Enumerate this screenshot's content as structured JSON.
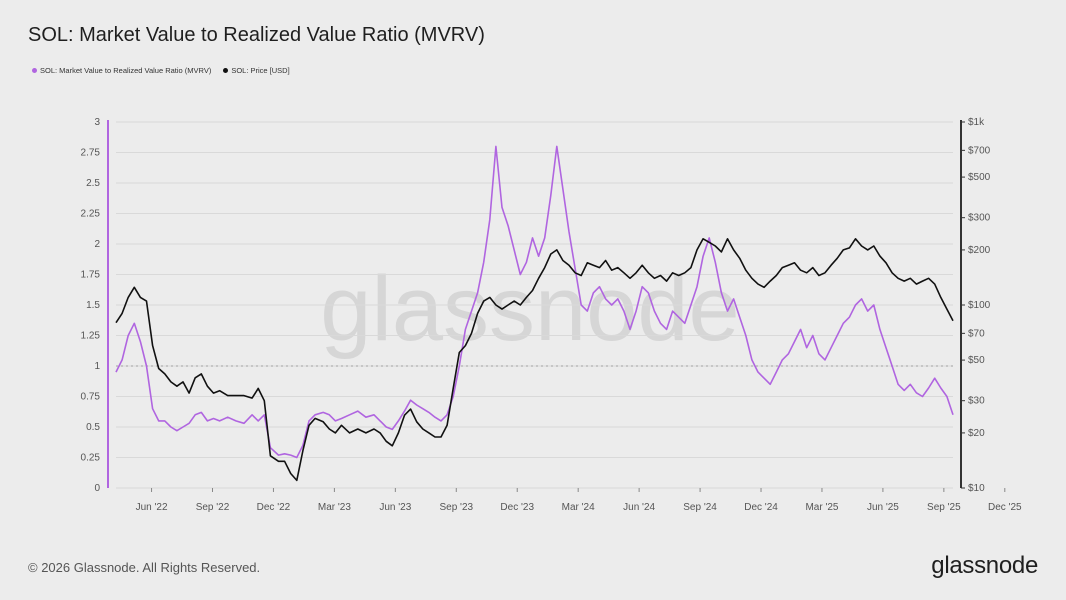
{
  "title": "SOL: Market Value to Realized Value Ratio (MVRV)",
  "legend": {
    "mvrv_label": "SOL: Market Value to Realized Value Ratio (MVRV)",
    "price_label": "SOL: Price [USD]"
  },
  "watermark": "glassnode",
  "footer": {
    "copyright": "© 2026 Glassnode. All Rights Reserved.",
    "logo": "glassnode"
  },
  "colors": {
    "mvrv": "#b065e0",
    "price": "#111111",
    "grid": "#d9d9d9",
    "reference": "#a0a0a0"
  },
  "chart_data": {
    "type": "line",
    "title": "SOL: Market Value to Realized Value Ratio (MVRV)",
    "x_ticks": [
      "Jun '22",
      "Sep '22",
      "Dec '22",
      "Mar '23",
      "Jun '23",
      "Sep '23",
      "Dec '23",
      "Mar '24",
      "Jun '24",
      "Sep '24",
      "Dec '24",
      "Mar '25",
      "Jun '25",
      "Sep '25",
      "Dec '25"
    ],
    "y_left": {
      "ticks": [
        "0",
        "0.25",
        "0.5",
        "0.75",
        "1",
        "1.25",
        "1.5",
        "1.75",
        "2",
        "2.25",
        "2.5",
        "2.75",
        "3"
      ],
      "ylim": [
        0,
        3
      ]
    },
    "y_right": {
      "scale": "log",
      "ticks": [
        "$10",
        "$20",
        "$30",
        "$50",
        "$70",
        "$100",
        "$200",
        "$300",
        "$500",
        "$700",
        "$1k"
      ],
      "tick_values": [
        10,
        20,
        30,
        50,
        70,
        100,
        200,
        300,
        500,
        700,
        1000
      ],
      "ylim": [
        10,
        1000
      ]
    },
    "reference_line": {
      "axis": "left",
      "value": 1,
      "style": "dotted"
    },
    "x_unit": "month offset from Apr '22",
    "series": [
      {
        "name": "SOL: Market Value to Realized Value Ratio (MVRV)",
        "axis": "left",
        "points": [
          [
            0,
            0.95
          ],
          [
            0.3,
            1.05
          ],
          [
            0.6,
            1.25
          ],
          [
            0.9,
            1.35
          ],
          [
            1.2,
            1.2
          ],
          [
            1.5,
            1.0
          ],
          [
            1.8,
            0.65
          ],
          [
            2.1,
            0.55
          ],
          [
            2.4,
            0.55
          ],
          [
            2.7,
            0.5
          ],
          [
            3.0,
            0.47
          ],
          [
            3.3,
            0.5
          ],
          [
            3.6,
            0.53
          ],
          [
            3.9,
            0.6
          ],
          [
            4.2,
            0.62
          ],
          [
            4.5,
            0.55
          ],
          [
            4.8,
            0.57
          ],
          [
            5.1,
            0.55
          ],
          [
            5.5,
            0.58
          ],
          [
            5.9,
            0.55
          ],
          [
            6.3,
            0.53
          ],
          [
            6.7,
            0.6
          ],
          [
            7.0,
            0.55
          ],
          [
            7.3,
            0.6
          ],
          [
            7.6,
            0.33
          ],
          [
            8.0,
            0.27
          ],
          [
            8.3,
            0.28
          ],
          [
            8.6,
            0.27
          ],
          [
            8.9,
            0.25
          ],
          [
            9.2,
            0.35
          ],
          [
            9.5,
            0.55
          ],
          [
            9.8,
            0.6
          ],
          [
            10.2,
            0.62
          ],
          [
            10.5,
            0.6
          ],
          [
            10.8,
            0.55
          ],
          [
            11.1,
            0.57
          ],
          [
            11.5,
            0.6
          ],
          [
            11.9,
            0.63
          ],
          [
            12.3,
            0.58
          ],
          [
            12.7,
            0.6
          ],
          [
            13.0,
            0.55
          ],
          [
            13.3,
            0.5
          ],
          [
            13.6,
            0.48
          ],
          [
            13.9,
            0.55
          ],
          [
            14.2,
            0.63
          ],
          [
            14.5,
            0.72
          ],
          [
            14.8,
            0.68
          ],
          [
            15.1,
            0.65
          ],
          [
            15.4,
            0.62
          ],
          [
            15.7,
            0.58
          ],
          [
            16.0,
            0.55
          ],
          [
            16.3,
            0.6
          ],
          [
            16.6,
            0.75
          ],
          [
            16.9,
            1.0
          ],
          [
            17.2,
            1.3
          ],
          [
            17.5,
            1.45
          ],
          [
            17.8,
            1.6
          ],
          [
            18.1,
            1.85
          ],
          [
            18.4,
            2.2
          ],
          [
            18.7,
            2.8
          ],
          [
            19.0,
            2.3
          ],
          [
            19.3,
            2.15
          ],
          [
            19.6,
            1.95
          ],
          [
            19.9,
            1.75
          ],
          [
            20.2,
            1.85
          ],
          [
            20.5,
            2.05
          ],
          [
            20.8,
            1.9
          ],
          [
            21.1,
            2.05
          ],
          [
            21.4,
            2.4
          ],
          [
            21.7,
            2.8
          ],
          [
            22.0,
            2.45
          ],
          [
            22.3,
            2.1
          ],
          [
            22.6,
            1.8
          ],
          [
            22.9,
            1.5
          ],
          [
            23.2,
            1.45
          ],
          [
            23.5,
            1.6
          ],
          [
            23.8,
            1.65
          ],
          [
            24.1,
            1.55
          ],
          [
            24.4,
            1.5
          ],
          [
            24.7,
            1.55
          ],
          [
            25.0,
            1.45
          ],
          [
            25.3,
            1.3
          ],
          [
            25.6,
            1.45
          ],
          [
            25.9,
            1.65
          ],
          [
            26.2,
            1.6
          ],
          [
            26.5,
            1.45
          ],
          [
            26.8,
            1.35
          ],
          [
            27.1,
            1.3
          ],
          [
            27.4,
            1.45
          ],
          [
            27.7,
            1.4
          ],
          [
            28.0,
            1.35
          ],
          [
            28.3,
            1.5
          ],
          [
            28.6,
            1.65
          ],
          [
            28.9,
            1.9
          ],
          [
            29.2,
            2.05
          ],
          [
            29.5,
            1.85
          ],
          [
            29.8,
            1.6
          ],
          [
            30.1,
            1.45
          ],
          [
            30.4,
            1.55
          ],
          [
            30.7,
            1.4
          ],
          [
            31.0,
            1.25
          ],
          [
            31.3,
            1.05
          ],
          [
            31.6,
            0.95
          ],
          [
            31.9,
            0.9
          ],
          [
            32.2,
            0.85
          ],
          [
            32.5,
            0.95
          ],
          [
            32.8,
            1.05
          ],
          [
            33.1,
            1.1
          ],
          [
            33.4,
            1.2
          ],
          [
            33.7,
            1.3
          ],
          [
            34.0,
            1.15
          ],
          [
            34.3,
            1.25
          ],
          [
            34.6,
            1.1
          ],
          [
            34.9,
            1.05
          ],
          [
            35.2,
            1.15
          ],
          [
            35.5,
            1.25
          ],
          [
            35.8,
            1.35
          ],
          [
            36.1,
            1.4
          ],
          [
            36.4,
            1.5
          ],
          [
            36.7,
            1.55
          ],
          [
            37.0,
            1.45
          ],
          [
            37.3,
            1.5
          ],
          [
            37.6,
            1.3
          ],
          [
            37.9,
            1.15
          ],
          [
            38.2,
            1.0
          ],
          [
            38.5,
            0.85
          ],
          [
            38.8,
            0.8
          ],
          [
            39.1,
            0.85
          ],
          [
            39.4,
            0.78
          ],
          [
            39.7,
            0.75
          ],
          [
            40.0,
            0.82
          ],
          [
            40.3,
            0.9
          ],
          [
            40.6,
            0.82
          ],
          [
            40.9,
            0.75
          ],
          [
            41.2,
            0.6
          ]
        ]
      },
      {
        "name": "SOL: Price [USD]",
        "axis": "right",
        "points": [
          [
            0,
            80
          ],
          [
            0.3,
            90
          ],
          [
            0.6,
            110
          ],
          [
            0.9,
            125
          ],
          [
            1.2,
            110
          ],
          [
            1.5,
            105
          ],
          [
            1.8,
            60
          ],
          [
            2.1,
            45
          ],
          [
            2.4,
            42
          ],
          [
            2.7,
            38
          ],
          [
            3.0,
            36
          ],
          [
            3.3,
            38
          ],
          [
            3.6,
            33
          ],
          [
            3.9,
            40
          ],
          [
            4.2,
            42
          ],
          [
            4.5,
            36
          ],
          [
            4.8,
            33
          ],
          [
            5.1,
            34
          ],
          [
            5.5,
            32
          ],
          [
            5.9,
            32
          ],
          [
            6.3,
            32
          ],
          [
            6.7,
            31
          ],
          [
            7.0,
            35
          ],
          [
            7.3,
            30
          ],
          [
            7.6,
            15
          ],
          [
            8.0,
            14
          ],
          [
            8.3,
            14
          ],
          [
            8.6,
            12
          ],
          [
            8.9,
            11
          ],
          [
            9.2,
            16
          ],
          [
            9.5,
            22
          ],
          [
            9.8,
            24
          ],
          [
            10.2,
            23
          ],
          [
            10.5,
            21
          ],
          [
            10.8,
            20
          ],
          [
            11.1,
            22
          ],
          [
            11.5,
            20
          ],
          [
            11.9,
            21
          ],
          [
            12.3,
            20
          ],
          [
            12.7,
            21
          ],
          [
            13.0,
            20
          ],
          [
            13.3,
            18
          ],
          [
            13.6,
            17
          ],
          [
            13.9,
            20
          ],
          [
            14.2,
            25
          ],
          [
            14.5,
            27
          ],
          [
            14.8,
            23
          ],
          [
            15.1,
            21
          ],
          [
            15.4,
            20
          ],
          [
            15.7,
            19
          ],
          [
            16.0,
            19
          ],
          [
            16.3,
            22
          ],
          [
            16.6,
            35
          ],
          [
            16.9,
            55
          ],
          [
            17.2,
            60
          ],
          [
            17.5,
            70
          ],
          [
            17.8,
            90
          ],
          [
            18.1,
            105
          ],
          [
            18.4,
            110
          ],
          [
            18.7,
            100
          ],
          [
            19.0,
            95
          ],
          [
            19.3,
            100
          ],
          [
            19.6,
            105
          ],
          [
            19.9,
            100
          ],
          [
            20.2,
            110
          ],
          [
            20.5,
            120
          ],
          [
            20.8,
            140
          ],
          [
            21.1,
            160
          ],
          [
            21.4,
            190
          ],
          [
            21.7,
            200
          ],
          [
            22.0,
            175
          ],
          [
            22.3,
            165
          ],
          [
            22.6,
            150
          ],
          [
            22.9,
            145
          ],
          [
            23.2,
            170
          ],
          [
            23.5,
            165
          ],
          [
            23.8,
            160
          ],
          [
            24.1,
            175
          ],
          [
            24.4,
            155
          ],
          [
            24.7,
            160
          ],
          [
            25.0,
            150
          ],
          [
            25.3,
            140
          ],
          [
            25.6,
            150
          ],
          [
            25.9,
            165
          ],
          [
            26.2,
            150
          ],
          [
            26.5,
            140
          ],
          [
            26.8,
            145
          ],
          [
            27.1,
            135
          ],
          [
            27.4,
            150
          ],
          [
            27.7,
            145
          ],
          [
            28.0,
            150
          ],
          [
            28.3,
            160
          ],
          [
            28.6,
            200
          ],
          [
            28.9,
            230
          ],
          [
            29.2,
            220
          ],
          [
            29.5,
            210
          ],
          [
            29.8,
            195
          ],
          [
            30.1,
            230
          ],
          [
            30.4,
            200
          ],
          [
            30.7,
            180
          ],
          [
            31.0,
            155
          ],
          [
            31.3,
            140
          ],
          [
            31.6,
            130
          ],
          [
            31.9,
            125
          ],
          [
            32.2,
            135
          ],
          [
            32.5,
            145
          ],
          [
            32.8,
            160
          ],
          [
            33.1,
            165
          ],
          [
            33.4,
            170
          ],
          [
            33.7,
            155
          ],
          [
            34.0,
            150
          ],
          [
            34.3,
            160
          ],
          [
            34.6,
            145
          ],
          [
            34.9,
            150
          ],
          [
            35.2,
            165
          ],
          [
            35.5,
            180
          ],
          [
            35.8,
            200
          ],
          [
            36.1,
            205
          ],
          [
            36.4,
            230
          ],
          [
            36.7,
            210
          ],
          [
            37.0,
            200
          ],
          [
            37.3,
            210
          ],
          [
            37.6,
            185
          ],
          [
            37.9,
            170
          ],
          [
            38.2,
            150
          ],
          [
            38.5,
            140
          ],
          [
            38.8,
            135
          ],
          [
            39.1,
            140
          ],
          [
            39.4,
            130
          ],
          [
            39.7,
            135
          ],
          [
            40.0,
            140
          ],
          [
            40.3,
            130
          ],
          [
            40.6,
            110
          ],
          [
            40.9,
            95
          ],
          [
            41.2,
            82
          ]
        ]
      }
    ]
  }
}
